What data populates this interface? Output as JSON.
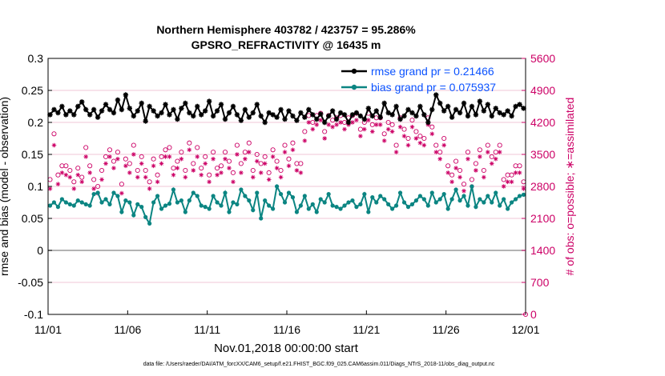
{
  "footer": "data file: /Users/raeder/DAI/ATM_forcXX/CAM6_setup/f.e21.FHIST_BGC.f09_025.CAM6assim.011/Diags_NTrS_2018-11/obs_diag_output.nc",
  "chart_data": {
    "type": "line",
    "title": "Northern Hemisphere 403782 / 423757 = 95.286%",
    "subtitle": "GPSRO_REFRACTIVITY @ 16435 m",
    "xlabel": "Nov.01,2018 00:00:00 start",
    "ylabel": "rmse and bias (model - observation)",
    "ylabel_right": "# of obs: o=possible; ∗=assimilated",
    "x_tick_labels": [
      "11/01",
      "11/06",
      "11/11",
      "11/16",
      "11/21",
      "11/26",
      "12/01"
    ],
    "x_tick_days": [
      0,
      5,
      10,
      15,
      20,
      25,
      30
    ],
    "xlim": [
      0,
      30
    ],
    "ylim": [
      -0.1,
      0.3
    ],
    "y_ticks": [
      -0.1,
      -0.05,
      0,
      0.05,
      0.1,
      0.15,
      0.2,
      0.25,
      0.3
    ],
    "y_tick_labels": [
      "-0.1",
      "-0.05",
      "0",
      "0.05",
      "0.1",
      "0.15",
      "0.2",
      "0.25",
      "0.3"
    ],
    "ylim_right": [
      0,
      5600
    ],
    "y_ticks_right": [
      0,
      700,
      1400,
      2100,
      2800,
      3500,
      4200,
      4900,
      5600
    ],
    "y_tick_labels_right": [
      "0",
      "700",
      "1400",
      "2100",
      "2800",
      "3500",
      "4200",
      "4900",
      "5600"
    ],
    "legend": [
      "rmse grand pr = 0.21466",
      "bias grand pr = 0.075937"
    ],
    "legend_position": "top-right",
    "colors": {
      "rmse": "#000000",
      "bias": "#0b8582",
      "obs": "#cc0066",
      "grid": "#f2c7d7",
      "zero_line": "#9a9a9a"
    },
    "x_days": [
      0.125,
      0.375,
      0.625,
      0.875,
      1.125,
      1.375,
      1.625,
      1.875,
      2.125,
      2.375,
      2.625,
      2.875,
      3.125,
      3.375,
      3.625,
      3.875,
      4.125,
      4.375,
      4.625,
      4.875,
      5.125,
      5.375,
      5.625,
      5.875,
      6.125,
      6.375,
      6.625,
      6.875,
      7.125,
      7.375,
      7.625,
      7.875,
      8.125,
      8.375,
      8.625,
      8.875,
      9.125,
      9.375,
      9.625,
      9.875,
      10.125,
      10.375,
      10.625,
      10.875,
      11.125,
      11.375,
      11.625,
      11.875,
      12.125,
      12.375,
      12.625,
      12.875,
      13.125,
      13.375,
      13.625,
      13.875,
      14.125,
      14.375,
      14.625,
      14.875,
      15.125,
      15.375,
      15.625,
      15.875,
      16.125,
      16.375,
      16.625,
      16.875,
      17.125,
      17.375,
      17.625,
      17.875,
      18.125,
      18.375,
      18.625,
      18.875,
      19.125,
      19.375,
      19.625,
      19.875,
      20.125,
      20.375,
      20.625,
      20.875,
      21.125,
      21.375,
      21.625,
      21.875,
      22.125,
      22.375,
      22.625,
      22.875,
      23.125,
      23.375,
      23.625,
      23.875,
      24.125,
      24.375,
      24.625,
      24.875,
      25.125,
      25.375,
      25.625,
      25.875,
      26.125,
      26.375,
      26.625,
      26.875,
      27.125,
      27.375,
      27.625,
      27.875,
      28.125,
      28.375,
      28.625,
      28.875,
      29.125,
      29.375,
      29.625,
      29.875
    ],
    "series": [
      {
        "name": "rmse",
        "marker": "star",
        "values": [
          0.212,
          0.22,
          0.215,
          0.225,
          0.212,
          0.218,
          0.212,
          0.225,
          0.232,
          0.22,
          0.212,
          0.22,
          0.208,
          0.218,
          0.228,
          0.22,
          0.215,
          0.235,
          0.22,
          0.243,
          0.222,
          0.21,
          0.218,
          0.23,
          0.202,
          0.225,
          0.218,
          0.21,
          0.215,
          0.228,
          0.212,
          0.22,
          0.205,
          0.222,
          0.23,
          0.215,
          0.21,
          0.225,
          0.212,
          0.218,
          0.233,
          0.21,
          0.218,
          0.228,
          0.205,
          0.215,
          0.225,
          0.212,
          0.203,
          0.22,
          0.208,
          0.215,
          0.228,
          0.21,
          0.2,
          0.215,
          0.212,
          0.208,
          0.22,
          0.205,
          0.218,
          0.21,
          0.203,
          0.215,
          0.208,
          0.22,
          0.212,
          0.205,
          0.213,
          0.2,
          0.21,
          0.218,
          0.205,
          0.215,
          0.212,
          0.2,
          0.212,
          0.215,
          0.21,
          0.205,
          0.222,
          0.21,
          0.218,
          0.208,
          0.23,
          0.215,
          0.212,
          0.225,
          0.205,
          0.21,
          0.22,
          0.215,
          0.21,
          0.225,
          0.212,
          0.2,
          0.22,
          0.243,
          0.23,
          0.218,
          0.225,
          0.208,
          0.22,
          0.215,
          0.23,
          0.21,
          0.225,
          0.212,
          0.233,
          0.218,
          0.228,
          0.21,
          0.222,
          0.215,
          0.212,
          0.218,
          0.21,
          0.225,
          0.228,
          0.222
        ]
      },
      {
        "name": "bias",
        "marker": "circle",
        "values": [
          0.07,
          0.075,
          0.068,
          0.08,
          0.075,
          0.072,
          0.07,
          0.078,
          0.075,
          0.072,
          0.07,
          0.088,
          0.09,
          0.075,
          0.08,
          0.072,
          0.09,
          0.085,
          0.06,
          0.078,
          0.075,
          0.055,
          0.072,
          0.068,
          0.052,
          0.042,
          0.075,
          0.085,
          0.065,
          0.07,
          0.073,
          0.095,
          0.075,
          0.078,
          0.06,
          0.078,
          0.09,
          0.085,
          0.07,
          0.068,
          0.065,
          0.085,
          0.075,
          0.07,
          0.09,
          0.06,
          0.075,
          0.072,
          0.095,
          0.085,
          0.078,
          0.063,
          0.09,
          0.05,
          0.078,
          0.07,
          0.065,
          0.1,
          0.088,
          0.075,
          0.09,
          0.083,
          0.06,
          0.07,
          0.085,
          0.065,
          0.072,
          0.06,
          0.08,
          0.075,
          0.088,
          0.07,
          0.068,
          0.065,
          0.07,
          0.075,
          0.078,
          0.068,
          0.072,
          0.088,
          0.06,
          0.083,
          0.075,
          0.085,
          0.08,
          0.072,
          0.065,
          0.07,
          0.09,
          0.075,
          0.068,
          0.072,
          0.078,
          0.085,
          0.08,
          0.07,
          0.09,
          0.075,
          0.08,
          0.088,
          0.065,
          0.08,
          0.095,
          0.078,
          0.085,
          0.07,
          0.1,
          0.068,
          0.08,
          0.075,
          0.085,
          0.075,
          0.09,
          0.07,
          0.08,
          0.065,
          0.075,
          0.08,
          0.085,
          0.087
        ]
      },
      {
        "name": "obs_possible",
        "axis": "right",
        "marker": "o",
        "values": [
          2950,
          3950,
          3050,
          3250,
          3250,
          3150,
          2900,
          3200,
          3000,
          3650,
          3250,
          2950,
          2800,
          3150,
          3450,
          3600,
          3350,
          3550,
          2850,
          3400,
          3300,
          3700,
          3150,
          3450,
          3150,
          2900,
          3400,
          3050,
          3450,
          3600,
          3650,
          3200,
          3350,
          3550,
          3150,
          3750,
          3300,
          3650,
          3200,
          3450,
          3050,
          3550,
          3200,
          3250,
          3550,
          3350,
          3100,
          3700,
          3300,
          3550,
          3750,
          3150,
          3500,
          3300,
          3450,
          3100,
          3600,
          3350,
          3150,
          3700,
          3400,
          3750,
          3300,
          3300,
          4000,
          4350,
          4200,
          4350,
          4400,
          4000,
          4350,
          4250,
          4300,
          4350,
          4200,
          4300,
          4350,
          4400,
          4050,
          4200,
          4400,
          4150,
          4300,
          4300,
          3950,
          4200,
          4150,
          3700,
          4300,
          4050,
          3850,
          4250,
          4000,
          3900,
          3850,
          4300,
          4100,
          3700,
          3550,
          3850,
          3250,
          3050,
          3350,
          3150,
          2850,
          3550,
          2950,
          3300,
          3600,
          3150,
          3700,
          3450,
          3550,
          3700,
          2950,
          3050,
          3050,
          3250,
          3250,
          2900
        ]
      },
      {
        "name": "obs_assimilated",
        "axis": "right",
        "marker": "star",
        "values": [
          2750,
          3700,
          2850,
          3100,
          3050,
          3000,
          2750,
          3050,
          2900,
          3450,
          3100,
          2750,
          2650,
          2950,
          3300,
          3450,
          3200,
          3400,
          2650,
          3250,
          3100,
          3500,
          3000,
          3300,
          3000,
          2750,
          3250,
          2900,
          3300,
          3450,
          3450,
          3050,
          3200,
          3400,
          3000,
          3600,
          3150,
          3450,
          3050,
          3300,
          2900,
          3400,
          3050,
          3100,
          3400,
          3200,
          2900,
          3500,
          3100,
          3400,
          3550,
          3000,
          3350,
          3100,
          3300,
          2950,
          3450,
          3200,
          3000,
          3550,
          3250,
          3600,
          3150,
          3100,
          3800,
          4200,
          4050,
          4150,
          4250,
          3850,
          4150,
          4100,
          4150,
          4200,
          4050,
          4150,
          4200,
          4250,
          3900,
          4050,
          4250,
          4000,
          4150,
          4150,
          3800,
          4050,
          4000,
          3550,
          4100,
          3900,
          3700,
          4100,
          3850,
          3750,
          3700,
          4150,
          3950,
          3550,
          3400,
          3700,
          3100,
          2900,
          3200,
          3000,
          2700,
          3400,
          2800,
          3150,
          3450,
          3000,
          3550,
          3300,
          3400,
          3550,
          2800,
          2900,
          2900,
          3100,
          3100,
          2750
        ]
      }
    ]
  }
}
